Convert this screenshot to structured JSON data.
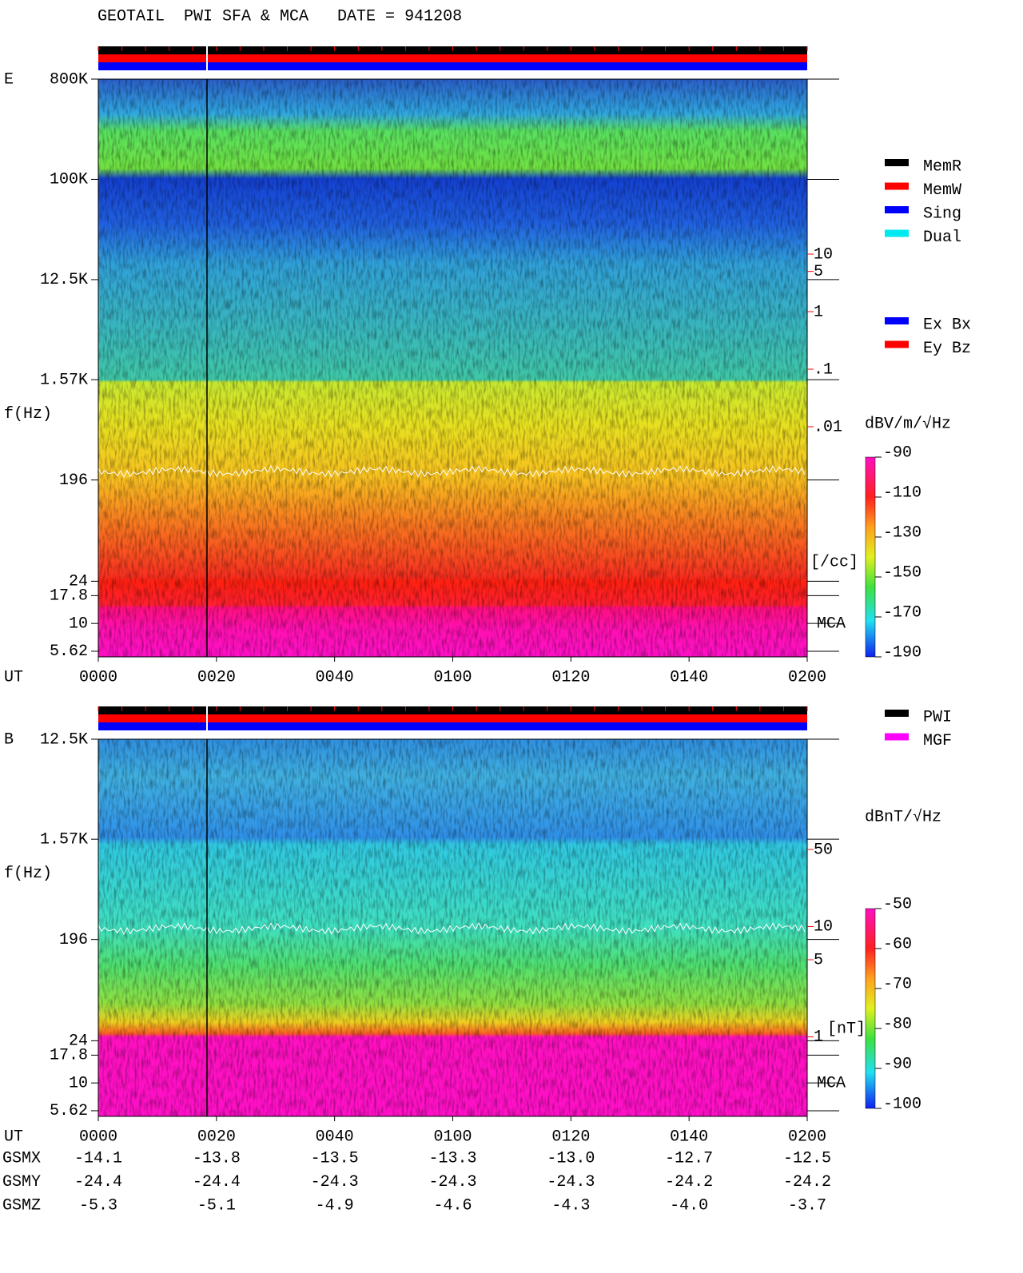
{
  "title": "GEOTAIL  PWI SFA & MCA   DATE = 941208",
  "chart_data": [
    {
      "type": "spectrogram",
      "panel_label": "E",
      "ylabel": "f(Hz)",
      "xlabel": "UT",
      "log_y": true,
      "ylim": [
        5,
        800000
      ],
      "yticks": [
        {
          "value": 800000,
          "label": "800K"
        },
        {
          "value": 100000,
          "label": "100K"
        },
        {
          "value": 12500,
          "label": "12.5K"
        },
        {
          "value": 1570,
          "label": "1.57K"
        },
        196,
        24,
        17.8,
        10,
        5.62
      ],
      "xlim": [
        0,
        120
      ],
      "xticks": [
        {
          "value": 0,
          "label": "0000"
        },
        {
          "value": 20,
          "label": "0020"
        },
        {
          "value": 40,
          "label": "0040"
        },
        {
          "value": 60,
          "label": "0100"
        },
        {
          "value": 80,
          "label": "0120"
        },
        {
          "value": 100,
          "label": "0140"
        },
        {
          "value": 120,
          "label": "0200"
        }
      ],
      "y2lim": [
        1e-06,
        11000
      ],
      "y2ticks": [
        10,
        5,
        1,
        {
          "value": 0.1,
          "label": ".1"
        },
        {
          "value": 0.01,
          "label": ".01"
        }
      ],
      "y2label": "[/cc]",
      "y2color": "#ff0000",
      "instrument_label": "MCA",
      "colorbar": {
        "label": "dBV/m/√Hz",
        "lim": [
          -190,
          -90
        ],
        "ticks": [
          -90,
          -110,
          -130,
          -150,
          -170,
          -190
        ]
      },
      "legend": [
        {
          "name": "MemR",
          "color": "#000000"
        },
        {
          "name": "MemW",
          "color": "#ff0000"
        },
        {
          "name": "Sing",
          "color": "#0000ff"
        },
        {
          "name": "Dual",
          "color": "#00e8f0"
        }
      ],
      "legend2": [
        {
          "name": "Ex Bx",
          "color": "#0000ff"
        },
        {
          "name": "Ey Bz",
          "color": "#ff0000"
        }
      ]
    },
    {
      "type": "spectrogram",
      "panel_label": "B",
      "ylabel": "f(Hz)",
      "xlabel": "UT",
      "log_y": true,
      "ylim": [
        5,
        12500
      ],
      "yticks": [
        {
          "value": 12500,
          "label": "12.5K"
        },
        {
          "value": 1570,
          "label": "1.57K"
        },
        196,
        24,
        17.8,
        10,
        5.62
      ],
      "xlim": [
        0,
        120
      ],
      "xticks": [
        {
          "value": 0,
          "label": "0000"
        },
        {
          "value": 20,
          "label": "0020"
        },
        {
          "value": 40,
          "label": "0040"
        },
        {
          "value": 60,
          "label": "0100"
        },
        {
          "value": 80,
          "label": "0120"
        },
        {
          "value": 100,
          "label": "0140"
        },
        {
          "value": 120,
          "label": "0200"
        }
      ],
      "y2lim": [
        0.19,
        500
      ],
      "y2ticks": [
        50,
        10,
        5,
        1
      ],
      "y2label": "[nT]",
      "y2color": "#ff0000",
      "instrument_label": "MCA",
      "colorbar": {
        "label": "dBnT/√Hz",
        "lim": [
          -100,
          -50
        ],
        "ticks": [
          -50,
          -60,
          -70,
          -80,
          -90,
          -100
        ]
      },
      "legend": [
        {
          "name": "PWI",
          "color": "#000000"
        },
        {
          "name": "MGF",
          "color": "#ff00ff"
        }
      ],
      "orbit": [
        {
          "name": "GSMX",
          "values": [
            -14.1,
            -13.8,
            -13.5,
            -13.3,
            {
              "value": -13,
              "label": "-13.0"
            },
            -12.7,
            -12.5
          ]
        },
        {
          "name": "GSMY",
          "values": [
            -24.4,
            -24.4,
            -24.3,
            -24.3,
            -24.3,
            -24.2,
            -24.2
          ]
        },
        {
          "name": "GSMZ",
          "values": [
            -5.3,
            -5.1,
            -4.9,
            -4.6,
            -4.3,
            {
              "value": -4,
              "label": "-4.0"
            },
            -3.7
          ]
        }
      ]
    }
  ]
}
